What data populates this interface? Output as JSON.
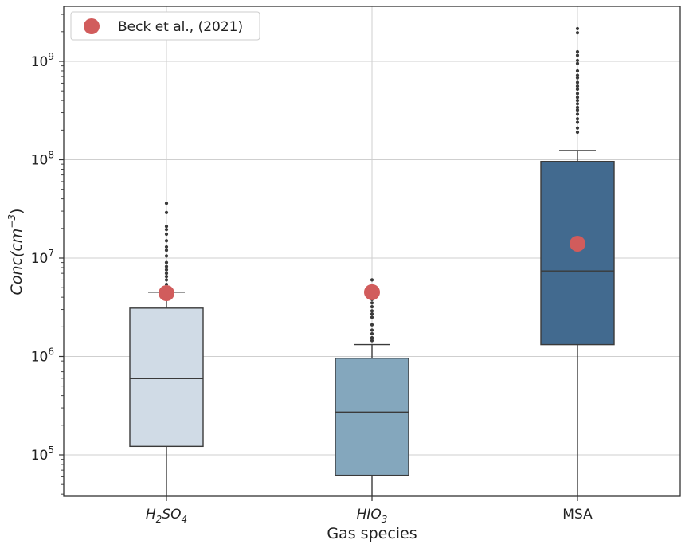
{
  "chart_data": {
    "type": "box",
    "xlabel": "Gas species",
    "ylabel": "Conc(cm⁻³)",
    "ylabel_parts": {
      "main": "Conc(cm",
      "exp": "−3",
      "close": ")"
    },
    "yscale": "log",
    "ylim": [
      38000,
      3500000000
    ],
    "yticks": [
      {
        "value": 100000,
        "base": "10",
        "exp": "5"
      },
      {
        "value": 1000000,
        "base": "10",
        "exp": "6"
      },
      {
        "value": 10000000,
        "base": "10",
        "exp": "7"
      },
      {
        "value": 100000000,
        "base": "10",
        "exp": "8"
      },
      {
        "value": 1000000000,
        "base": "10",
        "exp": "9"
      }
    ],
    "grid": true,
    "legend_placement": "top-left",
    "legend": [
      {
        "label": "Beck et al., (2021)",
        "color": "#d15c5c"
      }
    ],
    "categories": [
      {
        "label": "H2SO4",
        "label_parts": [
          {
            "t": "H",
            "sub": false
          },
          {
            "t": "2",
            "sub": true
          },
          {
            "t": "SO",
            "sub": false
          },
          {
            "t": "4",
            "sub": true
          }
        ],
        "color": "#d0dbe6",
        "whisker_low": 38000,
        "q1": 122000,
        "median": 595000,
        "q3": 3100000,
        "whisker_high": 4500000,
        "outliers": [
          4700000,
          5000000,
          5400000,
          6000000,
          6500000,
          7000000,
          7600000,
          8200000,
          9000000,
          10500000,
          12000000,
          13000000,
          15000000,
          17500000,
          19500000,
          21000000,
          29000000,
          36000000
        ],
        "reference": 4400000
      },
      {
        "label": "HIO3",
        "label_parts": [
          {
            "t": "HIO",
            "sub": false
          },
          {
            "t": "3",
            "sub": true
          }
        ],
        "color": "#84a7bd",
        "whisker_low": 38000,
        "q1": 62000,
        "median": 272000,
        "q3": 960000,
        "whisker_high": 1320000,
        "outliers": [
          1450000,
          1550000,
          1700000,
          1850000,
          2100000,
          2500000,
          2700000,
          2900000,
          3200000,
          3500000,
          3800000,
          4100000,
          4400000,
          4800000,
          5200000,
          6000000
        ],
        "reference": 4500000
      },
      {
        "label": "MSA",
        "label_parts": [
          {
            "t": "MSA",
            "sub": false
          }
        ],
        "color": "#426a8f",
        "whisker_low": 38000,
        "q1": 1320000,
        "median": 7400000,
        "q3": 96000000,
        "whisker_high": 124000000,
        "outliers": [
          190000000,
          210000000,
          240000000,
          260000000,
          290000000,
          320000000,
          340000000,
          370000000,
          400000000,
          430000000,
          470000000,
          520000000,
          560000000,
          610000000,
          680000000,
          720000000,
          800000000,
          950000000,
          1020000000,
          1150000000,
          1250000000,
          1950000000,
          2150000000
        ],
        "reference": 14000000
      }
    ]
  }
}
